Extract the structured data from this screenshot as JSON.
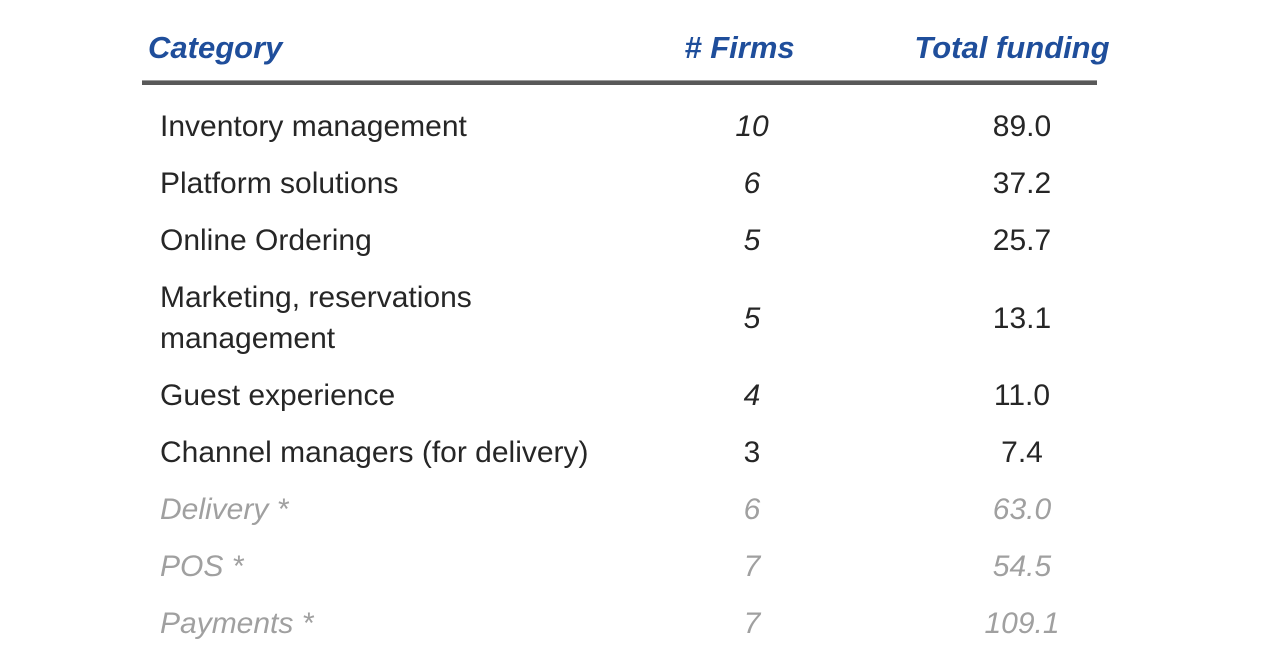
{
  "colors": {
    "header_blue": "#1F4E9B",
    "text_dark": "#262626",
    "dimmed_gray": "#A0A0A0",
    "divider_gray": "#595959",
    "page_bg": "#FFFFFF"
  },
  "table": {
    "headers": {
      "category": "Category",
      "firms": "# Firms",
      "funding": "Total funding"
    },
    "rows": [
      {
        "category": "Inventory management",
        "firms": "10",
        "funding": "89.0",
        "dimmed": false,
        "firms_italic": true
      },
      {
        "category": "Platform solutions",
        "firms": "6",
        "funding": "37.2",
        "dimmed": false,
        "firms_italic": true
      },
      {
        "category": "Online Ordering",
        "firms": "5",
        "funding": "25.7",
        "dimmed": false,
        "firms_italic": true
      },
      {
        "category": "Marketing, reservations management",
        "firms": "5",
        "funding": "13.1",
        "dimmed": false,
        "firms_italic": true
      },
      {
        "category": "Guest experience",
        "firms": "4",
        "funding": "11.0",
        "dimmed": false,
        "firms_italic": true
      },
      {
        "category": "Channel managers (for delivery)",
        "firms": "3",
        "funding": "7.4",
        "dimmed": false,
        "firms_italic": false
      },
      {
        "category": "Delivery *",
        "firms": "6",
        "funding": "63.0",
        "dimmed": true,
        "firms_italic": true
      },
      {
        "category": "POS *",
        "firms": "7",
        "funding": "54.5",
        "dimmed": true,
        "firms_italic": true
      },
      {
        "category": "Payments *",
        "firms": "7",
        "funding": "109.1",
        "dimmed": true,
        "firms_italic": true
      }
    ]
  },
  "chart_data": {
    "type": "table",
    "columns": [
      "Category",
      "# Firms",
      "Total funding"
    ],
    "rows": [
      [
        "Inventory management",
        10,
        89.0
      ],
      [
        "Platform solutions",
        6,
        37.2
      ],
      [
        "Online Ordering",
        5,
        25.7
      ],
      [
        "Marketing, reservations management",
        5,
        13.1
      ],
      [
        "Guest experience",
        4,
        11.0
      ],
      [
        "Channel managers (for delivery)",
        3,
        7.4
      ],
      [
        "Delivery *",
        6,
        63.0
      ],
      [
        "POS *",
        7,
        54.5
      ],
      [
        "Payments *",
        7,
        109.1
      ]
    ],
    "dimmed_rows": [
      "Delivery *",
      "POS *",
      "Payments *"
    ]
  }
}
